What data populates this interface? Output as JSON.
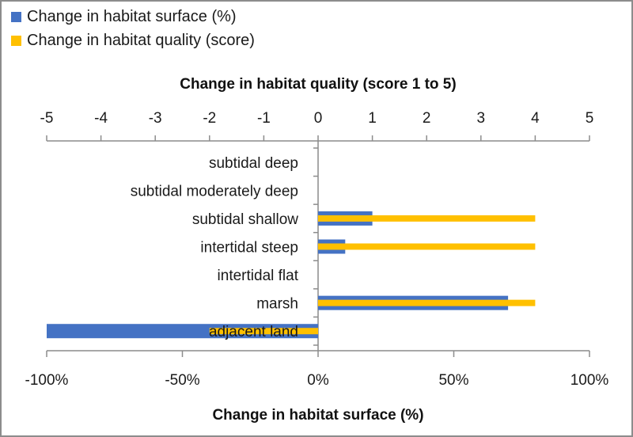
{
  "chart_data": {
    "type": "bar",
    "orientation": "horizontal",
    "categories": [
      "subtidal deep",
      "subtidal moderately deep",
      "subtidal shallow",
      "intertidal steep",
      "intertidal flat",
      "marsh",
      "adjacent land"
    ],
    "series": [
      {
        "name": "Change in habitat surface (%)",
        "axis": "bottom",
        "color": "#4472c4",
        "values": [
          0,
          0,
          20,
          10,
          0,
          70,
          -100
        ]
      },
      {
        "name": "Change in habitat quality (score)",
        "axis": "top",
        "color": "#ffc000",
        "values": [
          0,
          0,
          4,
          4,
          0,
          4,
          -2
        ]
      }
    ],
    "top_axis": {
      "title": "Change in habitat quality (score 1 to 5)",
      "range": [
        -5,
        5
      ],
      "ticks": [
        "-5",
        "-4",
        "-3",
        "-2",
        "-1",
        "0",
        "1",
        "2",
        "3",
        "4",
        "5"
      ]
    },
    "bottom_axis": {
      "title": "Change in habitat surface (%)",
      "range": [
        -100,
        100
      ],
      "ticks": [
        "-100%",
        "-50%",
        "0%",
        "50%",
        "100%"
      ]
    },
    "legend": {
      "placement": "top-left",
      "entries": [
        "Change in habitat surface (%)",
        "Change in habitat quality (score)"
      ]
    },
    "grid": false
  }
}
